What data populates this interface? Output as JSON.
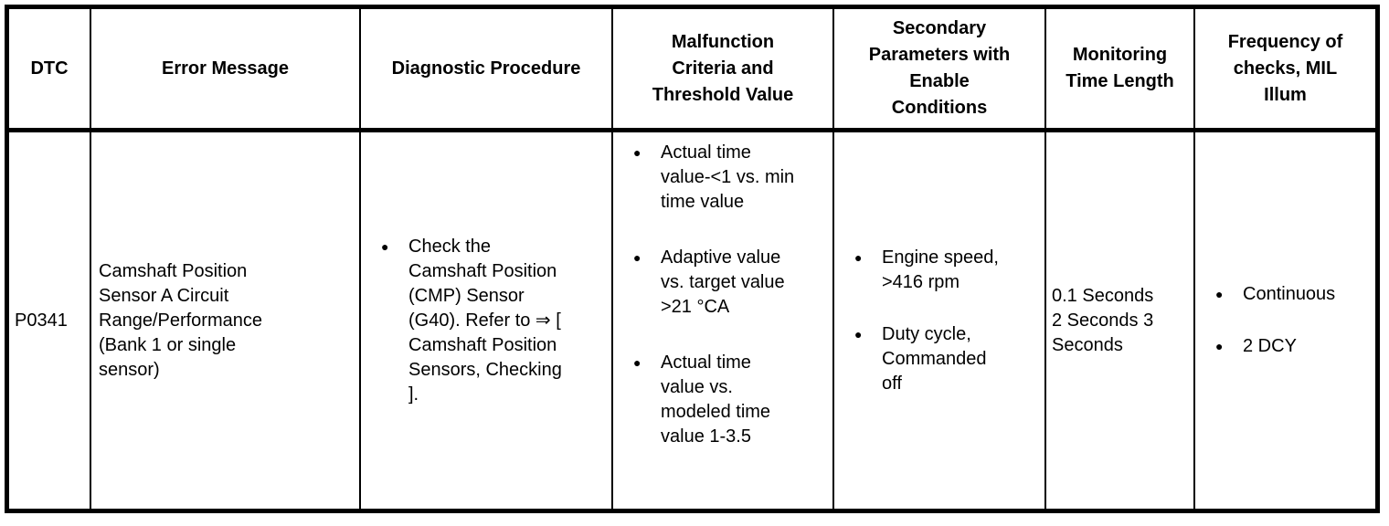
{
  "colors": {
    "border": "#000000",
    "background": "#ffffff",
    "text": "#000000"
  },
  "table": {
    "headers": [
      "DTC",
      "Error Message",
      "Diagnostic Procedure",
      "Malfunction Criteria and Threshold Value",
      "Secondary Parameters with Enable Conditions",
      "Monitoring Time Length",
      "Frequency of checks, MIL Illum"
    ],
    "rows": [
      {
        "dtc": "P0341",
        "error_message": "Camshaft Position Sensor A Circuit Range/Performance (Bank 1 or single sensor)",
        "diagnostic_procedure": [
          "Check the Camshaft Position (CMP) Sensor (G40). Refer to ⇒ [ Camshaft Position Sensors, Checking ]."
        ],
        "malfunction_criteria": [
          "Actual time value-<1 vs. min time value",
          "Adaptive value vs. target value >21 °CA",
          "Actual time value vs. modeled time value 1-3.5"
        ],
        "secondary_parameters": [
          "Engine speed, >416 rpm",
          "Duty cycle, Commanded off"
        ],
        "monitoring_time_length": "0.1 Seconds 2 Seconds 3 Seconds",
        "frequency_of_checks": [
          "Continuous",
          "2 DCY"
        ]
      }
    ]
  }
}
